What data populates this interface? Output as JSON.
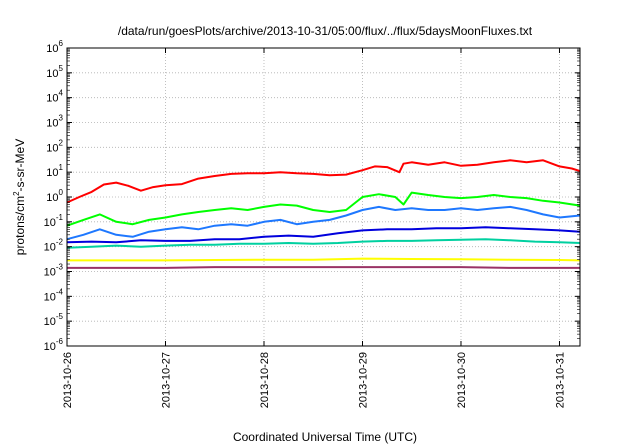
{
  "chart_data": {
    "type": "line",
    "title": "/data/run/goesPlots/archive/2013-10-31/05:00/flux/../flux/5daysMoonFluxes.txt",
    "xlabel": "Coordinated Universal Time (UTC)",
    "ylabel": "protons/cm²-s-sr-MeV",
    "ylabel_parts": {
      "pre": "protons/cm",
      "sup": "2",
      "post": "-s-sr-MeV"
    },
    "y_scale": "log",
    "ylim": [
      1e-06,
      1000000.0
    ],
    "y_ticks": [
      {
        "exp": -6,
        "base": "10",
        "sup": "-6"
      },
      {
        "exp": -5,
        "base": "10",
        "sup": "-5"
      },
      {
        "exp": -4,
        "base": "10",
        "sup": "-4"
      },
      {
        "exp": -3,
        "base": "10",
        "sup": "-3"
      },
      {
        "exp": -2,
        "base": "10",
        "sup": "-2"
      },
      {
        "exp": -1,
        "base": "10",
        "sup": "-1"
      },
      {
        "exp": 0,
        "base": "10",
        "sup": "0"
      },
      {
        "exp": 1,
        "base": "10",
        "sup": "1"
      },
      {
        "exp": 2,
        "base": "10",
        "sup": "2"
      },
      {
        "exp": 3,
        "base": "10",
        "sup": "3"
      },
      {
        "exp": 4,
        "base": "10",
        "sup": "4"
      },
      {
        "exp": 5,
        "base": "10",
        "sup": "5"
      },
      {
        "exp": 6,
        "base": "10",
        "sup": "6"
      }
    ],
    "xlim": [
      "2013-10-26T00:00",
      "2013-10-31T05:00"
    ],
    "x_ticks": [
      "2013-10-26",
      "2013-10-27",
      "2013-10-28",
      "2013-10-29",
      "2013-10-30",
      "2013-10-31"
    ],
    "grid": true,
    "series": [
      {
        "color": "#ff0000",
        "points": [
          [
            "2013-10-26T00:00",
            0.6
          ],
          [
            "2013-10-26T03:00",
            1.0
          ],
          [
            "2013-10-26T06:00",
            1.6
          ],
          [
            "2013-10-26T09:00",
            3.2
          ],
          [
            "2013-10-26T12:00",
            3.8
          ],
          [
            "2013-10-26T15:00",
            2.8
          ],
          [
            "2013-10-26T18:00",
            1.8
          ],
          [
            "2013-10-26T21:00",
            2.5
          ],
          [
            "2013-10-27T00:00",
            3.0
          ],
          [
            "2013-10-27T04:00",
            3.3
          ],
          [
            "2013-10-27T08:00",
            5.5
          ],
          [
            "2013-10-27T12:00",
            7.0
          ],
          [
            "2013-10-27T16:00",
            8.5
          ],
          [
            "2013-10-27T20:00",
            9.0
          ],
          [
            "2013-10-28T00:00",
            9.0
          ],
          [
            "2013-10-28T04:00",
            10.0
          ],
          [
            "2013-10-28T08:00",
            9.0
          ],
          [
            "2013-10-28T12:00",
            8.5
          ],
          [
            "2013-10-28T16:00",
            7.5
          ],
          [
            "2013-10-28T20:00",
            8.0
          ],
          [
            "2013-10-29T00:00",
            12.0
          ],
          [
            "2013-10-29T03:00",
            17.0
          ],
          [
            "2013-10-29T06:00",
            16.0
          ],
          [
            "2013-10-29T09:00",
            10.0
          ],
          [
            "2013-10-29T10:00",
            22.0
          ],
          [
            "2013-10-29T12:00",
            25.0
          ],
          [
            "2013-10-29T16:00",
            20.0
          ],
          [
            "2013-10-29T20:00",
            25.0
          ],
          [
            "2013-10-30T00:00",
            18.0
          ],
          [
            "2013-10-30T04:00",
            20.0
          ],
          [
            "2013-10-30T08:00",
            25.0
          ],
          [
            "2013-10-30T12:00",
            30.0
          ],
          [
            "2013-10-30T16:00",
            25.0
          ],
          [
            "2013-10-30T20:00",
            30.0
          ],
          [
            "2013-10-31T00:00",
            17.0
          ],
          [
            "2013-10-31T03:00",
            14.0
          ],
          [
            "2013-10-31T05:00",
            11.0
          ]
        ]
      },
      {
        "color": "#00ff00",
        "points": [
          [
            "2013-10-26T00:00",
            0.07
          ],
          [
            "2013-10-26T04:00",
            0.12
          ],
          [
            "2013-10-26T08:00",
            0.2
          ],
          [
            "2013-10-26T12:00",
            0.1
          ],
          [
            "2013-10-26T16:00",
            0.08
          ],
          [
            "2013-10-26T20:00",
            0.12
          ],
          [
            "2013-10-27T00:00",
            0.15
          ],
          [
            "2013-10-27T04:00",
            0.2
          ],
          [
            "2013-10-27T08:00",
            0.25
          ],
          [
            "2013-10-27T12:00",
            0.3
          ],
          [
            "2013-10-27T16:00",
            0.35
          ],
          [
            "2013-10-27T20:00",
            0.3
          ],
          [
            "2013-10-28T00:00",
            0.4
          ],
          [
            "2013-10-28T04:00",
            0.5
          ],
          [
            "2013-10-28T08:00",
            0.45
          ],
          [
            "2013-10-28T12:00",
            0.3
          ],
          [
            "2013-10-28T16:00",
            0.25
          ],
          [
            "2013-10-28T20:00",
            0.3
          ],
          [
            "2013-10-29T00:00",
            1.0
          ],
          [
            "2013-10-29T04:00",
            1.3
          ],
          [
            "2013-10-29T08:00",
            1.0
          ],
          [
            "2013-10-29T10:00",
            0.5
          ],
          [
            "2013-10-29T12:00",
            1.5
          ],
          [
            "2013-10-29T16:00",
            1.2
          ],
          [
            "2013-10-29T20:00",
            1.0
          ],
          [
            "2013-10-30T00:00",
            0.9
          ],
          [
            "2013-10-30T04:00",
            1.0
          ],
          [
            "2013-10-30T08:00",
            1.2
          ],
          [
            "2013-10-30T12:00",
            1.0
          ],
          [
            "2013-10-30T16:00",
            0.9
          ],
          [
            "2013-10-30T20:00",
            0.7
          ],
          [
            "2013-10-31T00:00",
            0.6
          ],
          [
            "2013-10-31T05:00",
            0.45
          ]
        ]
      },
      {
        "color": "#1e78ff",
        "points": [
          [
            "2013-10-26T00:00",
            0.02
          ],
          [
            "2013-10-26T04:00",
            0.03
          ],
          [
            "2013-10-26T08:00",
            0.05
          ],
          [
            "2013-10-26T12:00",
            0.03
          ],
          [
            "2013-10-26T16:00",
            0.025
          ],
          [
            "2013-10-26T20:00",
            0.04
          ],
          [
            "2013-10-27T00:00",
            0.05
          ],
          [
            "2013-10-27T04:00",
            0.06
          ],
          [
            "2013-10-27T08:00",
            0.05
          ],
          [
            "2013-10-27T12:00",
            0.07
          ],
          [
            "2013-10-27T16:00",
            0.08
          ],
          [
            "2013-10-27T20:00",
            0.07
          ],
          [
            "2013-10-28T00:00",
            0.1
          ],
          [
            "2013-10-28T04:00",
            0.12
          ],
          [
            "2013-10-28T08:00",
            0.08
          ],
          [
            "2013-10-28T12:00",
            0.1
          ],
          [
            "2013-10-28T16:00",
            0.12
          ],
          [
            "2013-10-28T20:00",
            0.18
          ],
          [
            "2013-10-29T00:00",
            0.3
          ],
          [
            "2013-10-29T04:00",
            0.4
          ],
          [
            "2013-10-29T08:00",
            0.3
          ],
          [
            "2013-10-29T12:00",
            0.35
          ],
          [
            "2013-10-29T16:00",
            0.3
          ],
          [
            "2013-10-29T20:00",
            0.3
          ],
          [
            "2013-10-30T00:00",
            0.35
          ],
          [
            "2013-10-30T04:00",
            0.3
          ],
          [
            "2013-10-30T08:00",
            0.35
          ],
          [
            "2013-10-30T12:00",
            0.4
          ],
          [
            "2013-10-30T16:00",
            0.3
          ],
          [
            "2013-10-30T20:00",
            0.2
          ],
          [
            "2013-10-31T00:00",
            0.15
          ],
          [
            "2013-10-31T05:00",
            0.18
          ]
        ]
      },
      {
        "color": "#0000dd",
        "points": [
          [
            "2013-10-26T00:00",
            0.015
          ],
          [
            "2013-10-26T06:00",
            0.016
          ],
          [
            "2013-10-26T12:00",
            0.015
          ],
          [
            "2013-10-26T18:00",
            0.018
          ],
          [
            "2013-10-27T00:00",
            0.017
          ],
          [
            "2013-10-27T06:00",
            0.017
          ],
          [
            "2013-10-27T12:00",
            0.02
          ],
          [
            "2013-10-27T18:00",
            0.02
          ],
          [
            "2013-10-28T00:00",
            0.025
          ],
          [
            "2013-10-28T06:00",
            0.028
          ],
          [
            "2013-10-28T12:00",
            0.025
          ],
          [
            "2013-10-28T18:00",
            0.035
          ],
          [
            "2013-10-29T00:00",
            0.045
          ],
          [
            "2013-10-29T06:00",
            0.05
          ],
          [
            "2013-10-29T12:00",
            0.05
          ],
          [
            "2013-10-29T18:00",
            0.055
          ],
          [
            "2013-10-30T00:00",
            0.055
          ],
          [
            "2013-10-30T06:00",
            0.06
          ],
          [
            "2013-10-30T12:00",
            0.055
          ],
          [
            "2013-10-30T18:00",
            0.05
          ],
          [
            "2013-10-31T00:00",
            0.045
          ],
          [
            "2013-10-31T05:00",
            0.04
          ]
        ]
      },
      {
        "color": "#00d0a0",
        "points": [
          [
            "2013-10-26T00:00",
            0.009
          ],
          [
            "2013-10-26T06:00",
            0.01
          ],
          [
            "2013-10-26T12:00",
            0.011
          ],
          [
            "2013-10-26T18:00",
            0.01
          ],
          [
            "2013-10-27T00:00",
            0.011
          ],
          [
            "2013-10-27T06:00",
            0.012
          ],
          [
            "2013-10-27T12:00",
            0.012
          ],
          [
            "2013-10-27T18:00",
            0.013
          ],
          [
            "2013-10-28T00:00",
            0.013
          ],
          [
            "2013-10-28T06:00",
            0.014
          ],
          [
            "2013-10-28T12:00",
            0.013
          ],
          [
            "2013-10-28T18:00",
            0.014
          ],
          [
            "2013-10-29T00:00",
            0.016
          ],
          [
            "2013-10-29T06:00",
            0.017
          ],
          [
            "2013-10-29T12:00",
            0.017
          ],
          [
            "2013-10-29T18:00",
            0.018
          ],
          [
            "2013-10-30T00:00",
            0.019
          ],
          [
            "2013-10-30T06:00",
            0.02
          ],
          [
            "2013-10-30T12:00",
            0.018
          ],
          [
            "2013-10-30T18:00",
            0.016
          ],
          [
            "2013-10-31T00:00",
            0.015
          ],
          [
            "2013-10-31T05:00",
            0.014
          ]
        ]
      },
      {
        "color": "#ffff00",
        "points": [
          [
            "2013-10-26T00:00",
            0.0028
          ],
          [
            "2013-10-26T12:00",
            0.0028
          ],
          [
            "2013-10-27T00:00",
            0.0028
          ],
          [
            "2013-10-27T12:00",
            0.0029
          ],
          [
            "2013-10-28T00:00",
            0.003
          ],
          [
            "2013-10-28T12:00",
            0.003
          ],
          [
            "2013-10-29T00:00",
            0.0033
          ],
          [
            "2013-10-29T12:00",
            0.0032
          ],
          [
            "2013-10-30T00:00",
            0.0031
          ],
          [
            "2013-10-30T12:00",
            0.003
          ],
          [
            "2013-10-31T00:00",
            0.0029
          ],
          [
            "2013-10-31T05:00",
            0.0028
          ]
        ]
      },
      {
        "color": "#993366",
        "points": [
          [
            "2013-10-26T00:00",
            0.0014
          ],
          [
            "2013-10-26T12:00",
            0.0014
          ],
          [
            "2013-10-27T00:00",
            0.0014
          ],
          [
            "2013-10-27T12:00",
            0.0015
          ],
          [
            "2013-10-28T00:00",
            0.0015
          ],
          [
            "2013-10-28T12:00",
            0.0015
          ],
          [
            "2013-10-29T00:00",
            0.0015
          ],
          [
            "2013-10-29T12:00",
            0.0015
          ],
          [
            "2013-10-30T00:00",
            0.0015
          ],
          [
            "2013-10-30T12:00",
            0.0014
          ],
          [
            "2013-10-31T00:00",
            0.0014
          ],
          [
            "2013-10-31T05:00",
            0.0014
          ]
        ]
      }
    ]
  }
}
